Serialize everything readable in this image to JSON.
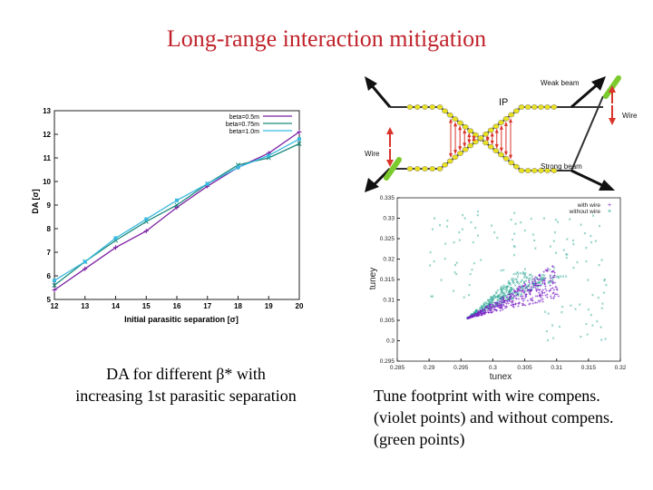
{
  "slide": {
    "title": "Long-range interaction mitigation",
    "caption_left_line1": "DA for different β* with",
    "caption_left_line2": "increasing 1st parasitic separation",
    "caption_right_line1": "Tune footprint with wire compens.",
    "caption_right_line2": "(violet points) and without compens.",
    "caption_right_line3": "(green points)"
  },
  "colors": {
    "title": "#c0232b",
    "beta_0_5": "#7b1fa2",
    "beta_0_75": "#1a8a7a",
    "beta_1_0": "#39b9e0",
    "with_wire": "#7b22c7",
    "without_wire": "#25a590",
    "beam_yellow": "#e8e020",
    "wire_green": "#7ccb2e",
    "arrow_red": "#d9342a"
  },
  "schematic": {
    "ip_label": "IP",
    "weak_beam_label": "Weak beam",
    "strong_beam_label": "Strong beam",
    "wire_left_label": "Wire",
    "wire_right_label": "Wire"
  },
  "chart_data": [
    {
      "type": "line",
      "xlabel": "Initial parasitic separation [σ]",
      "ylabel": "DA [σ]",
      "xlim": [
        12,
        20
      ],
      "ylim": [
        5,
        13
      ],
      "x_ticks": [
        "12",
        "13",
        "14",
        "15",
        "16",
        "17",
        "18",
        "19",
        "20"
      ],
      "y_ticks": [
        "5",
        "6",
        "7",
        "8",
        "9",
        "10",
        "11",
        "12",
        "13"
      ],
      "grid": false,
      "legend_position": "top-right",
      "x": [
        12,
        13,
        14,
        15,
        16,
        17,
        18,
        19,
        20
      ],
      "series": [
        {
          "name": "beta=0.5m",
          "values": [
            5.4,
            6.3,
            7.2,
            7.9,
            8.9,
            9.8,
            10.6,
            11.2,
            12.1
          ]
        },
        {
          "name": "beta=0.75m",
          "values": [
            5.6,
            6.6,
            7.5,
            8.3,
            9.0,
            9.9,
            10.7,
            11.0,
            11.6
          ]
        },
        {
          "name": "beta=1.0m",
          "values": [
            5.8,
            6.6,
            7.6,
            8.4,
            9.2,
            9.9,
            10.6,
            11.1,
            11.8
          ]
        }
      ]
    },
    {
      "type": "scatter",
      "xlabel": "tunex",
      "ylabel": "tuney",
      "xlim": [
        0.285,
        0.32
      ],
      "ylim": [
        0.295,
        0.335
      ],
      "x_ticks": [
        "0.285",
        "0.29",
        "0.295",
        "0.3",
        "0.305",
        "0.31",
        "0.315",
        "0.32"
      ],
      "y_ticks": [
        "0.295",
        "0.3",
        "0.305",
        "0.31",
        "0.315",
        "0.32",
        "0.325",
        "0.33",
        "0.335"
      ],
      "legend_position": "top-right",
      "series": [
        {
          "name": "with wire",
          "description_points": [
            [
              0.296,
              0.3055
            ],
            [
              0.3105,
              0.318
            ],
            [
              0.3105,
              0.311
            ]
          ]
        },
        {
          "name": "without wire",
          "description_points": [
            [
              0.296,
              0.3055
            ],
            [
              0.304,
              0.316
            ],
            [
              0.311,
              0.3185
            ]
          ]
        }
      ]
    }
  ]
}
